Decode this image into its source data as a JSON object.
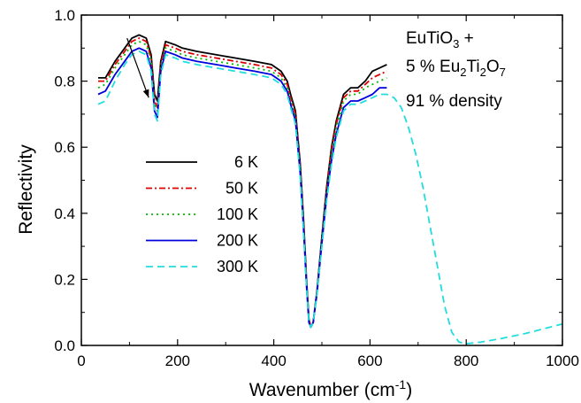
{
  "chart_data": {
    "type": "line",
    "xlabel": "Wavenumber (cm",
    "xlabel_sup": "-1",
    "xlabel_tail": ")",
    "ylabel": "Reflectivity",
    "xlim": [
      0,
      1000
    ],
    "ylim": [
      0.0,
      1.0
    ],
    "xticks": [
      0,
      200,
      400,
      600,
      800,
      1000
    ],
    "yticks": [
      0.0,
      0.2,
      0.4,
      0.6,
      0.8,
      1.0
    ],
    "xtick_labels": [
      "0",
      "200",
      "400",
      "600",
      "800",
      "1000"
    ],
    "ytick_labels": [
      "0.0",
      "0.2",
      "0.4",
      "0.6",
      "0.8",
      "1.0"
    ],
    "annotation": {
      "line1": "EuTiO",
      "line1_sub": "3",
      "line1_tail": " +",
      "line2_a": "5 % Eu",
      "line2_sub1": "2",
      "line2_b": "Ti",
      "line2_sub2": "2",
      "line2_c": "O",
      "line2_sub3": "7",
      "line3": "91 % density"
    },
    "arrow": {
      "from": [
        95,
        0.93
      ],
      "to": [
        140,
        0.75
      ]
    },
    "legend_position": "center-left",
    "series": [
      {
        "name": "6 K",
        "color": "#000000",
        "dash": "",
        "points": [
          [
            35,
            0.81
          ],
          [
            50,
            0.81
          ],
          [
            70,
            0.86
          ],
          [
            90,
            0.9
          ],
          [
            105,
            0.93
          ],
          [
            120,
            0.94
          ],
          [
            135,
            0.93
          ],
          [
            145,
            0.88
          ],
          [
            152,
            0.76
          ],
          [
            158,
            0.74
          ],
          [
            165,
            0.86
          ],
          [
            175,
            0.92
          ],
          [
            195,
            0.91
          ],
          [
            210,
            0.9
          ],
          [
            240,
            0.89
          ],
          [
            280,
            0.88
          ],
          [
            320,
            0.87
          ],
          [
            360,
            0.86
          ],
          [
            395,
            0.85
          ],
          [
            415,
            0.83
          ],
          [
            428,
            0.8
          ],
          [
            435,
            0.76
          ],
          [
            445,
            0.71
          ],
          [
            455,
            0.55
          ],
          [
            462,
            0.38
          ],
          [
            468,
            0.2
          ],
          [
            473,
            0.08
          ],
          [
            477,
            0.055
          ],
          [
            482,
            0.07
          ],
          [
            490,
            0.17
          ],
          [
            500,
            0.33
          ],
          [
            510,
            0.48
          ],
          [
            520,
            0.6
          ],
          [
            530,
            0.68
          ],
          [
            545,
            0.76
          ],
          [
            560,
            0.78
          ],
          [
            575,
            0.78
          ],
          [
            590,
            0.8
          ],
          [
            605,
            0.83
          ],
          [
            620,
            0.84
          ],
          [
            635,
            0.85
          ]
        ]
      },
      {
        "name": "50 K",
        "color": "#dd0000",
        "dash": "7,3,2,3",
        "points": [
          [
            35,
            0.8
          ],
          [
            50,
            0.8
          ],
          [
            70,
            0.85
          ],
          [
            90,
            0.89
          ],
          [
            105,
            0.92
          ],
          [
            120,
            0.93
          ],
          [
            135,
            0.92
          ],
          [
            145,
            0.87
          ],
          [
            152,
            0.74
          ],
          [
            158,
            0.72
          ],
          [
            165,
            0.85
          ],
          [
            175,
            0.91
          ],
          [
            195,
            0.9
          ],
          [
            210,
            0.89
          ],
          [
            240,
            0.88
          ],
          [
            280,
            0.87
          ],
          [
            320,
            0.86
          ],
          [
            360,
            0.85
          ],
          [
            395,
            0.84
          ],
          [
            415,
            0.82
          ],
          [
            428,
            0.79
          ],
          [
            435,
            0.75
          ],
          [
            445,
            0.7
          ],
          [
            455,
            0.54
          ],
          [
            462,
            0.37
          ],
          [
            468,
            0.19
          ],
          [
            473,
            0.08
          ],
          [
            477,
            0.055
          ],
          [
            482,
            0.07
          ],
          [
            490,
            0.17
          ],
          [
            500,
            0.32
          ],
          [
            510,
            0.47
          ],
          [
            520,
            0.59
          ],
          [
            530,
            0.67
          ],
          [
            545,
            0.75
          ],
          [
            560,
            0.77
          ],
          [
            575,
            0.77
          ],
          [
            590,
            0.79
          ],
          [
            605,
            0.81
          ],
          [
            620,
            0.82
          ],
          [
            635,
            0.83
          ]
        ]
      },
      {
        "name": "100 K",
        "color": "#00bb00",
        "dash": "2,4",
        "points": [
          [
            35,
            0.78
          ],
          [
            50,
            0.79
          ],
          [
            70,
            0.84
          ],
          [
            90,
            0.88
          ],
          [
            105,
            0.91
          ],
          [
            120,
            0.92
          ],
          [
            135,
            0.91
          ],
          [
            145,
            0.86
          ],
          [
            152,
            0.73
          ],
          [
            158,
            0.71
          ],
          [
            165,
            0.84
          ],
          [
            175,
            0.9
          ],
          [
            195,
            0.89
          ],
          [
            210,
            0.88
          ],
          [
            240,
            0.87
          ],
          [
            280,
            0.86
          ],
          [
            320,
            0.85
          ],
          [
            360,
            0.84
          ],
          [
            395,
            0.83
          ],
          [
            415,
            0.81
          ],
          [
            428,
            0.78
          ],
          [
            435,
            0.74
          ],
          [
            445,
            0.69
          ],
          [
            455,
            0.53
          ],
          [
            462,
            0.36
          ],
          [
            468,
            0.19
          ],
          [
            473,
            0.08
          ],
          [
            477,
            0.055
          ],
          [
            482,
            0.07
          ],
          [
            490,
            0.17
          ],
          [
            500,
            0.32
          ],
          [
            510,
            0.46
          ],
          [
            520,
            0.58
          ],
          [
            530,
            0.66
          ],
          [
            545,
            0.74
          ],
          [
            560,
            0.76
          ],
          [
            575,
            0.76
          ],
          [
            590,
            0.78
          ],
          [
            605,
            0.79
          ],
          [
            620,
            0.8
          ],
          [
            635,
            0.81
          ]
        ]
      },
      {
        "name": "200 K",
        "color": "#0000dd",
        "dash": "",
        "points": [
          [
            35,
            0.76
          ],
          [
            50,
            0.77
          ],
          [
            70,
            0.82
          ],
          [
            90,
            0.86
          ],
          [
            105,
            0.89
          ],
          [
            120,
            0.9
          ],
          [
            135,
            0.89
          ],
          [
            145,
            0.84
          ],
          [
            152,
            0.71
          ],
          [
            158,
            0.69
          ],
          [
            165,
            0.83
          ],
          [
            175,
            0.89
          ],
          [
            195,
            0.88
          ],
          [
            210,
            0.87
          ],
          [
            240,
            0.86
          ],
          [
            280,
            0.85
          ],
          [
            320,
            0.84
          ],
          [
            360,
            0.83
          ],
          [
            395,
            0.82
          ],
          [
            415,
            0.8
          ],
          [
            428,
            0.77
          ],
          [
            435,
            0.73
          ],
          [
            445,
            0.68
          ],
          [
            455,
            0.52
          ],
          [
            462,
            0.35
          ],
          [
            468,
            0.18
          ],
          [
            473,
            0.07
          ],
          [
            477,
            0.055
          ],
          [
            482,
            0.07
          ],
          [
            490,
            0.16
          ],
          [
            500,
            0.31
          ],
          [
            510,
            0.45
          ],
          [
            520,
            0.56
          ],
          [
            530,
            0.64
          ],
          [
            545,
            0.72
          ],
          [
            560,
            0.74
          ],
          [
            575,
            0.74
          ],
          [
            590,
            0.75
          ],
          [
            605,
            0.76
          ],
          [
            620,
            0.78
          ],
          [
            635,
            0.78
          ]
        ]
      },
      {
        "name": "300 K",
        "color": "#22dddd",
        "dash": "8,5",
        "points": [
          [
            35,
            0.73
          ],
          [
            50,
            0.74
          ],
          [
            70,
            0.8
          ],
          [
            90,
            0.85
          ],
          [
            105,
            0.88
          ],
          [
            120,
            0.89
          ],
          [
            135,
            0.88
          ],
          [
            145,
            0.83
          ],
          [
            152,
            0.7
          ],
          [
            158,
            0.68
          ],
          [
            165,
            0.82
          ],
          [
            175,
            0.88
          ],
          [
            195,
            0.87
          ],
          [
            210,
            0.86
          ],
          [
            240,
            0.85
          ],
          [
            280,
            0.84
          ],
          [
            320,
            0.83
          ],
          [
            360,
            0.82
          ],
          [
            395,
            0.81
          ],
          [
            415,
            0.79
          ],
          [
            428,
            0.76
          ],
          [
            435,
            0.72
          ],
          [
            445,
            0.67
          ],
          [
            455,
            0.51
          ],
          [
            462,
            0.34
          ],
          [
            468,
            0.18
          ],
          [
            473,
            0.07
          ],
          [
            477,
            0.055
          ],
          [
            482,
            0.07
          ],
          [
            490,
            0.16
          ],
          [
            500,
            0.3
          ],
          [
            510,
            0.44
          ],
          [
            520,
            0.55
          ],
          [
            530,
            0.63
          ],
          [
            545,
            0.71
          ],
          [
            560,
            0.73
          ],
          [
            575,
            0.73
          ],
          [
            590,
            0.74
          ],
          [
            605,
            0.75
          ],
          [
            620,
            0.76
          ],
          [
            635,
            0.76
          ],
          [
            650,
            0.75
          ],
          [
            665,
            0.72
          ],
          [
            680,
            0.66
          ],
          [
            695,
            0.58
          ],
          [
            710,
            0.48
          ],
          [
            725,
            0.36
          ],
          [
            740,
            0.24
          ],
          [
            755,
            0.12
          ],
          [
            770,
            0.04
          ],
          [
            785,
            0.01
          ],
          [
            800,
            0.005
          ],
          [
            830,
            0.01
          ],
          [
            870,
            0.02
          ],
          [
            920,
            0.035
          ],
          [
            1000,
            0.065
          ]
        ]
      }
    ]
  }
}
